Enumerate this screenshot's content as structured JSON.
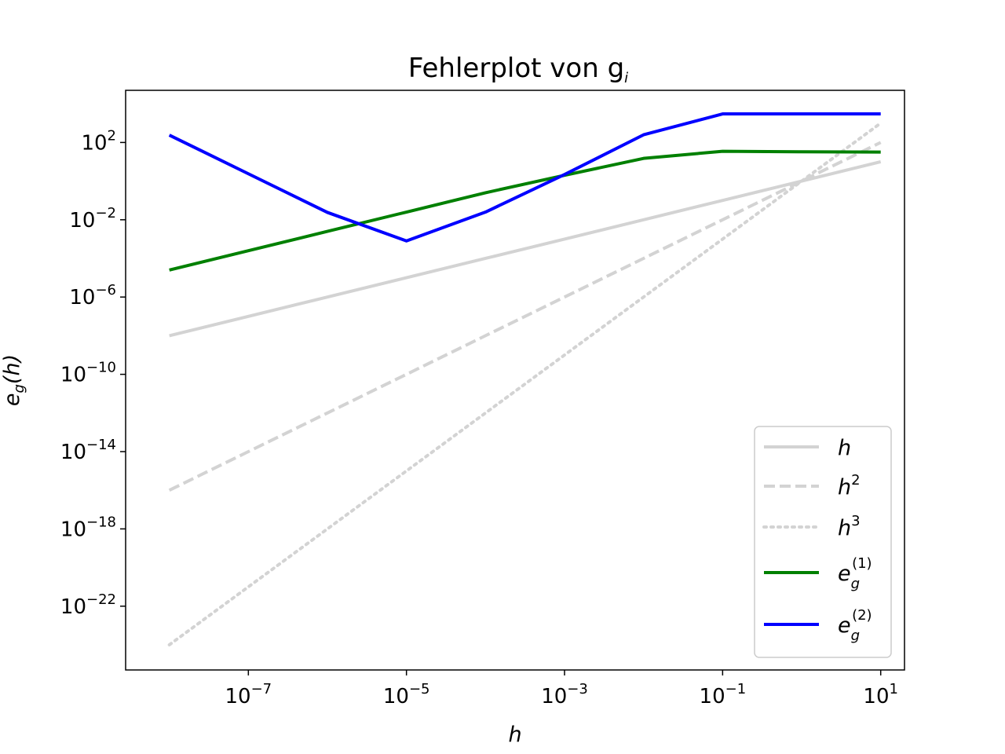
{
  "chart_data": {
    "type": "line",
    "title": "Fehlerplot von g",
    "title_italic_suffix": "i",
    "xlabel": "h",
    "ylabel": "e",
    "ylabel_sub": "g",
    "ylabel_suffix": "(h)",
    "xscale": "log",
    "yscale": "log",
    "xlim": [
      2.8e-09,
      20
    ],
    "ylim": [
      5e-26,
      50000.0
    ],
    "x_ticks": [
      {
        "base": "10",
        "exp": "−7",
        "value": 1e-07
      },
      {
        "base": "10",
        "exp": "−5",
        "value": 1e-05
      },
      {
        "base": "10",
        "exp": "−3",
        "value": 0.001
      },
      {
        "base": "10",
        "exp": "−1",
        "value": 0.1
      },
      {
        "base": "10",
        "exp": "1",
        "value": 10
      }
    ],
    "y_ticks": [
      {
        "base": "10",
        "exp": "2",
        "value": 100.0
      },
      {
        "base": "10",
        "exp": "−2",
        "value": 0.01
      },
      {
        "base": "10",
        "exp": "−6",
        "value": 1e-06
      },
      {
        "base": "10",
        "exp": "−10",
        "value": 1e-10
      },
      {
        "base": "10",
        "exp": "−14",
        "value": 1e-14
      },
      {
        "base": "10",
        "exp": "−18",
        "value": 1e-18
      },
      {
        "base": "10",
        "exp": "−22",
        "value": 1e-22
      }
    ],
    "grid": false,
    "legend_position": "lower-right",
    "series": [
      {
        "name": "h",
        "name_sup": "",
        "name_sub": "",
        "color": "#d3d3d3",
        "style": "solid",
        "x": [
          1e-08,
          1e-07,
          1e-06,
          1e-05,
          0.0001,
          0.001,
          0.01,
          0.1,
          1,
          10
        ],
        "y": [
          1e-08,
          1e-07,
          1e-06,
          1e-05,
          0.0001,
          0.001,
          0.01,
          0.1,
          1,
          10
        ]
      },
      {
        "name": "h",
        "name_sup": "2",
        "name_sub": "",
        "color": "#d3d3d3",
        "style": "dashed",
        "x": [
          1e-08,
          1e-07,
          1e-06,
          1e-05,
          0.0001,
          0.001,
          0.01,
          0.1,
          1,
          10
        ],
        "y": [
          1e-16,
          1e-14,
          1e-12,
          1e-10,
          1e-08,
          1e-06,
          0.0001,
          0.01,
          1,
          100
        ]
      },
      {
        "name": "h",
        "name_sup": "3",
        "name_sub": "",
        "color": "#d3d3d3",
        "style": "dotted",
        "x": [
          1e-08,
          1e-07,
          1e-06,
          1e-05,
          0.0001,
          0.001,
          0.01,
          0.1,
          1,
          10
        ],
        "y": [
          1e-24,
          1e-21,
          1e-18,
          1e-15,
          1e-12,
          1e-09,
          1e-06,
          0.001,
          1,
          1000
        ]
      },
      {
        "name": "e",
        "name_sup": "(1)",
        "name_sub": "g",
        "color": "#008000",
        "style": "solid",
        "x": [
          1e-08,
          1e-07,
          1e-06,
          1e-05,
          0.0001,
          0.001,
          0.01,
          0.1,
          1,
          10
        ],
        "y": [
          2.5e-05,
          0.00025,
          0.0025,
          0.025,
          0.25,
          2.0,
          15,
          35,
          33,
          32
        ]
      },
      {
        "name": "e",
        "name_sup": "(2)",
        "name_sub": "g",
        "color": "#0000ff",
        "style": "solid",
        "x": [
          1e-08,
          1e-07,
          1e-06,
          1e-05,
          0.0001,
          0.001,
          0.01,
          0.1,
          1,
          10
        ],
        "y": [
          240,
          2.4,
          0.024,
          0.0008,
          0.025,
          2.2,
          250,
          3000,
          3000,
          3000
        ]
      }
    ]
  }
}
